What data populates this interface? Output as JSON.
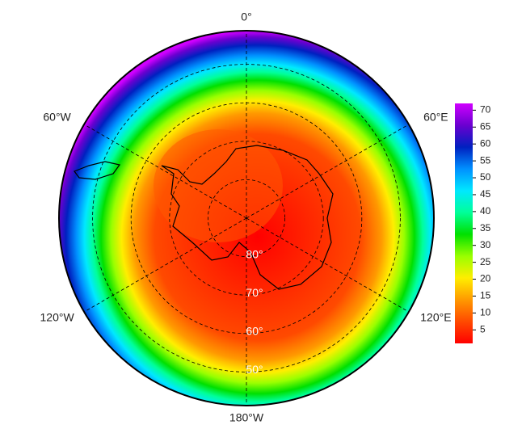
{
  "map": {
    "longitude_labels": [
      "0°",
      "60°E",
      "120°E",
      "180°W",
      "120°W",
      "60°W"
    ],
    "latitude_labels": [
      "80°",
      "70°",
      "60°",
      "50°"
    ]
  },
  "colorbar": {
    "range": [
      1,
      72
    ],
    "ticks": [
      5,
      10,
      15,
      20,
      25,
      30,
      35,
      40,
      45,
      50,
      55,
      60,
      65,
      70
    ],
    "colors": [
      "#ff0000",
      "#ff4a00",
      "#ff9900",
      "#ffee00",
      "#99ff00",
      "#00e000",
      "#00ff99",
      "#00e8ff",
      "#0090ff",
      "#0020c0",
      "#6a00d0",
      "#d000ff"
    ]
  }
}
